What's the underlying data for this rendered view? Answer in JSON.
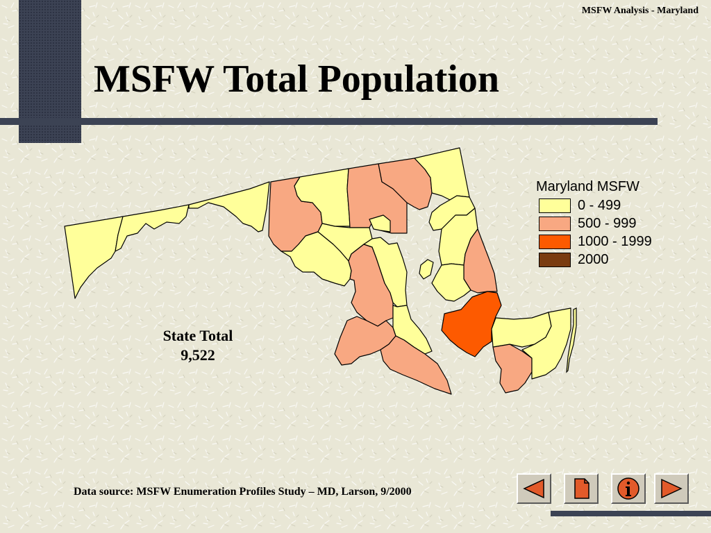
{
  "header": {
    "corner_label": "MSFW Analysis - Maryland"
  },
  "title": "MSFW Total Population",
  "legend": {
    "title": "Maryland MSFW",
    "items": [
      {
        "label": "0 - 499",
        "color": "#ffff9a"
      },
      {
        "label": "500 - 999",
        "color": "#f8a882"
      },
      {
        "label": "1000 - 1999",
        "color": "#fd5a00"
      },
      {
        "label": "2000",
        "color": "#7a3c10"
      }
    ]
  },
  "state_total": {
    "label": "State Total",
    "value": "9,522"
  },
  "source": "Data source: MSFW Enumeration Profiles Study – MD, Larson, 9/2000",
  "nav": [
    {
      "name": "previous",
      "icon": "left-arrow-icon"
    },
    {
      "name": "document",
      "icon": "document-icon"
    },
    {
      "name": "info",
      "icon": "info-icon"
    },
    {
      "name": "next",
      "icon": "right-arrow-icon"
    }
  ],
  "colors": {
    "dark_accent": "#3c4354",
    "button_fill": "#e25a2a",
    "county_low": "#ffff9a",
    "county_mid": "#f8a882",
    "county_high": "#fd5a00"
  },
  "counties": [
    {
      "tier": "0 - 499"
    },
    {
      "tier": "0 - 499"
    },
    {
      "tier": "0 - 499"
    },
    {
      "tier": "500 - 999"
    },
    {
      "tier": "0 - 499"
    },
    {
      "tier": "500 - 999"
    },
    {
      "tier": "500 - 999"
    },
    {
      "tier": "0 - 499"
    },
    {
      "tier": "0 - 499"
    },
    {
      "tier": "0 - 499"
    },
    {
      "tier": "0 - 499"
    },
    {
      "tier": "500 - 999"
    },
    {
      "tier": "0 - 499"
    },
    {
      "tier": "500 - 999"
    },
    {
      "tier": "0 - 499"
    },
    {
      "tier": "500 - 999"
    },
    {
      "tier": "0 - 499"
    },
    {
      "tier": "0 - 499"
    },
    {
      "tier": "0 - 499"
    },
    {
      "tier": "500 - 999"
    },
    {
      "tier": "1000 - 1999"
    },
    {
      "tier": "0 - 499"
    },
    {
      "tier": "500 - 999"
    },
    {
      "tier": "0 - 499"
    },
    {
      "tier": "0 - 499"
    }
  ]
}
